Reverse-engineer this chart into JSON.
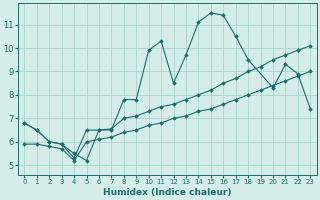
{
  "xlabel": "Humidex (Indice chaleur)",
  "ylabel": "",
  "xlim": [
    -0.5,
    23.5
  ],
  "ylim": [
    4.6,
    11.9
  ],
  "yticks": [
    5,
    6,
    7,
    8,
    9,
    10,
    11
  ],
  "xticks": [
    0,
    1,
    2,
    3,
    4,
    5,
    6,
    7,
    8,
    9,
    10,
    11,
    12,
    13,
    14,
    15,
    16,
    17,
    18,
    19,
    20,
    21,
    22,
    23
  ],
  "bg_color": "#d4ecea",
  "grid_color": "#a8d4d0",
  "line_color": "#1a6e6a",
  "line_series": [
    [
      6.8,
      6.5,
      6.0,
      5.9,
      5.5,
      5.2,
      6.5,
      6.5,
      7.8,
      7.8,
      9.9,
      10.3,
      8.5,
      9.7,
      11.1,
      11.5,
      11.4,
      10.5,
      9.5,
      null,
      8.3,
      9.3,
      8.9,
      7.4
    ],
    [
      6.8,
      6.5,
      6.0,
      5.9,
      5.3,
      6.5,
      6.5,
      6.55,
      7.0,
      7.1,
      7.3,
      7.5,
      7.6,
      7.8,
      8.0,
      8.2,
      8.5,
      8.7,
      9.0,
      9.2,
      9.5,
      9.7,
      9.9,
      10.1
    ],
    [
      5.9,
      5.9,
      5.8,
      5.7,
      5.2,
      6.0,
      6.1,
      6.2,
      6.4,
      6.5,
      6.7,
      6.8,
      7.0,
      7.1,
      7.3,
      7.4,
      7.6,
      7.8,
      8.0,
      8.2,
      8.4,
      8.6,
      8.8,
      9.0
    ]
  ]
}
